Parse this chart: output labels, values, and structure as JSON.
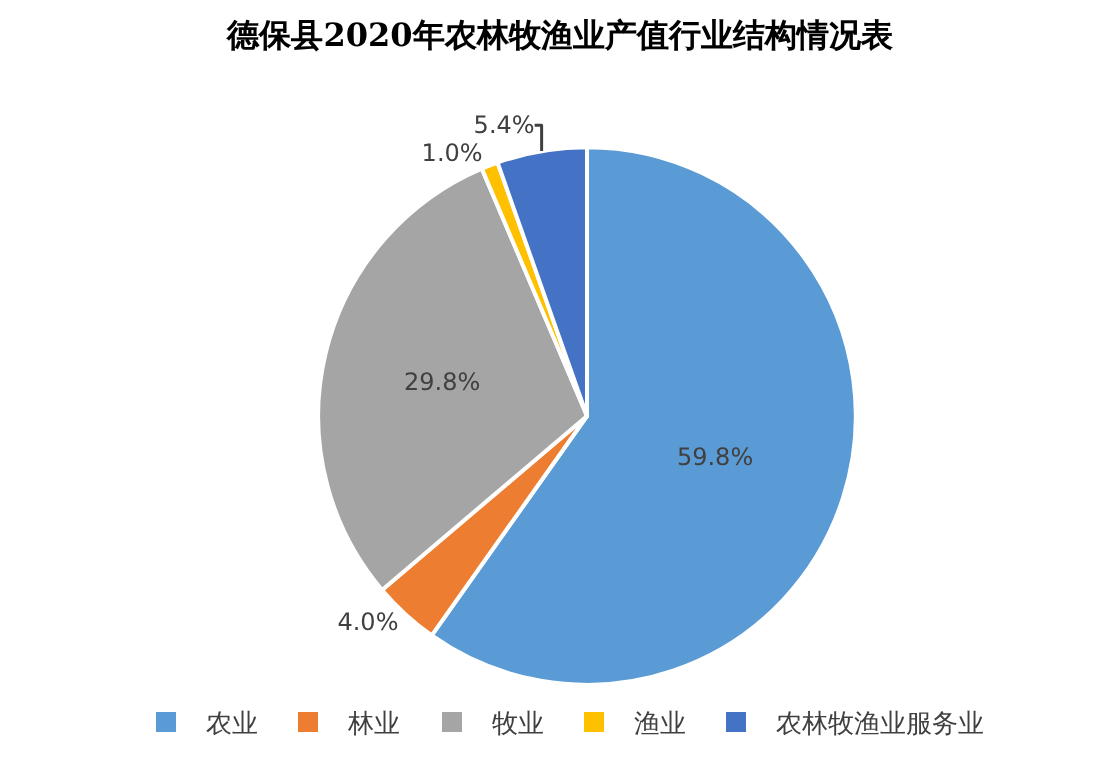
{
  "chart_data": {
    "type": "pie",
    "title": "德保县2020年农林牧渔业产值行业结构情况表",
    "categories": [
      "农业",
      "林业",
      "牧业",
      "渔业",
      "农林牧渔业服务业"
    ],
    "values": [
      59.8,
      4.0,
      29.8,
      1.0,
      5.4
    ],
    "value_labels": [
      "59.8%",
      "4.0%",
      "29.8%",
      "1.0%",
      "5.4%"
    ],
    "colors": [
      "#5b9bd5",
      "#ed7d31",
      "#a5a5a5",
      "#ffc000",
      "#4472c4"
    ],
    "legend": "bottom"
  }
}
